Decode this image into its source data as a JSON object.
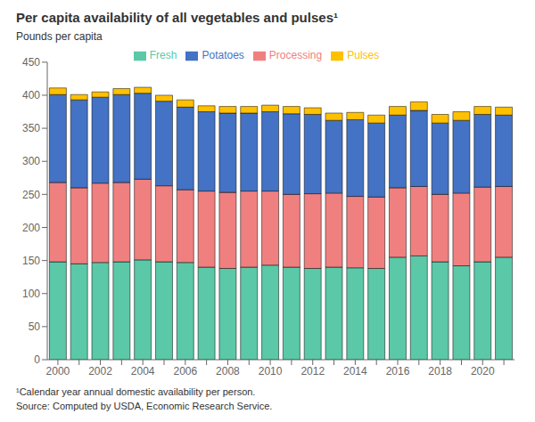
{
  "chart_data": {
    "type": "bar",
    "title": "Per capita availability of all vegetables and pulses¹",
    "y_label": "Pounds per capita",
    "annotations": [
      "¹Calendar year annual domestic availability per person.",
      "Source: Computed by USDA, Economic Research Service."
    ],
    "categories": [
      "2000",
      null,
      "2002",
      null,
      "2004",
      null,
      "2006",
      null,
      "2008",
      null,
      "2010",
      null,
      "2012",
      null,
      "2014",
      null,
      "2016",
      null,
      "2018",
      null,
      "2020",
      null
    ],
    "series": [
      {
        "name": "Fresh",
        "color": "#5BC8A8",
        "values": [
          148,
          145,
          147,
          148,
          151,
          148,
          147,
          140,
          138,
          140,
          143,
          140,
          138,
          140,
          139,
          138,
          155,
          157,
          148,
          142,
          148,
          155
        ]
      },
      {
        "name": "Processing",
        "color": "#F08080",
        "values": [
          120,
          115,
          120,
          120,
          122,
          115,
          110,
          115,
          115,
          115,
          112,
          110,
          113,
          112,
          108,
          108,
          105,
          105,
          102,
          110,
          113,
          107
        ]
      },
      {
        "name": "Potatoes",
        "color": "#4472C4",
        "values": [
          133,
          133,
          130,
          133,
          130,
          128,
          125,
          120,
          120,
          118,
          120,
          122,
          120,
          110,
          116,
          112,
          110,
          115,
          108,
          110,
          110,
          108
        ]
      },
      {
        "name": "Pulses",
        "color": "#FFC000",
        "values": [
          10,
          8,
          8,
          9,
          9,
          9,
          11,
          9,
          10,
          10,
          10,
          11,
          10,
          11,
          11,
          12,
          13,
          13,
          13,
          13,
          12,
          12
        ]
      }
    ],
    "stacked": true,
    "ylim": [
      0,
      450
    ],
    "yticks": [
      0,
      50,
      100,
      150,
      200,
      250,
      300,
      350,
      400,
      450
    ],
    "grid": false,
    "legend": "top"
  }
}
